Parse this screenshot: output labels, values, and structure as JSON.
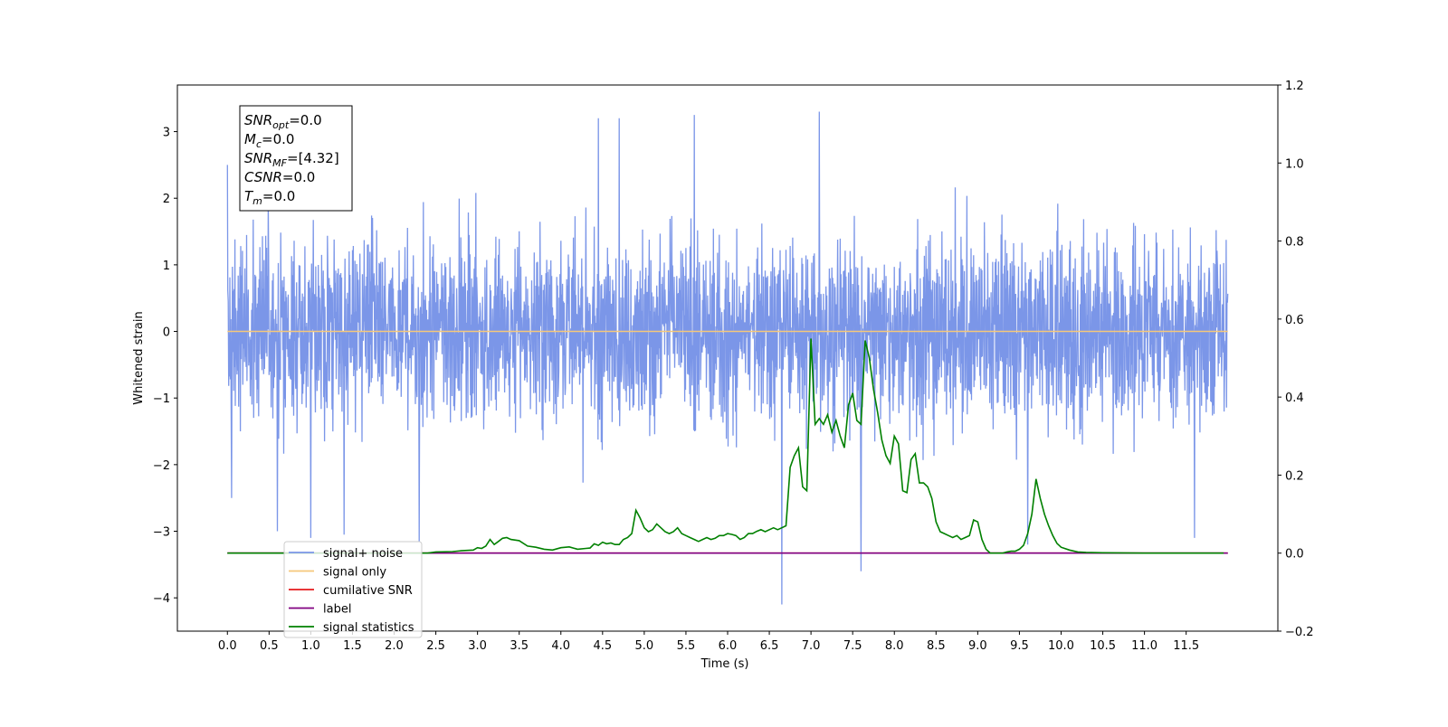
{
  "chart_data": {
    "type": "line",
    "xlabel": "Time (s)",
    "ylabel": "Whitened strain",
    "xlim": [
      -0.6,
      12.6
    ],
    "ylim": [
      -4.5,
      3.7
    ],
    "y2lim": [
      -0.2,
      1.2
    ],
    "grid": false,
    "legend_placement": "lower-left",
    "x_ticks": [
      0.0,
      0.5,
      1.0,
      1.5,
      2.0,
      2.5,
      3.0,
      3.5,
      4.0,
      4.5,
      5.0,
      5.5,
      6.0,
      6.5,
      7.0,
      7.5,
      8.0,
      8.5,
      9.0,
      9.5,
      10.0,
      10.5,
      11.0,
      11.5
    ],
    "x_tick_labels": [
      "0.0",
      "0.5",
      "1.0",
      "1.5",
      "2.0",
      "2.5",
      "3.0",
      "3.5",
      "4.0",
      "4.5",
      "5.0",
      "5.5",
      "6.0",
      "6.5",
      "7.0",
      "7.5",
      "8.0",
      "8.5",
      "9.0",
      "9.5",
      "10.0",
      "10.5",
      "11.0",
      "11.5"
    ],
    "y_ticks": [
      -4,
      -3,
      -2,
      -1,
      0,
      1,
      2,
      3
    ],
    "y_tick_labels": [
      "−4",
      "−3",
      "−2",
      "−1",
      "0",
      "1",
      "2",
      "3"
    ],
    "y2_ticks": [
      -0.2,
      0.0,
      0.2,
      0.4,
      0.6,
      0.8,
      1.0,
      1.2
    ],
    "y2_tick_labels": [
      "−0.2",
      "0.0",
      "0.2",
      "0.4",
      "0.6",
      "0.8",
      "1.0",
      "1.2"
    ],
    "annotation": [
      {
        "main": "SNR",
        "sub": "opt",
        "value": "=0.0"
      },
      {
        "main": "M",
        "sub": "c",
        "value": "=0.0"
      },
      {
        "main": "SNR",
        "sub": "MF",
        "value": "=[4.32]"
      },
      {
        "main": "CSNR",
        "sub": "",
        "value": "=0.0"
      },
      {
        "main": "T",
        "sub": "m",
        "value": "=0.0"
      }
    ],
    "series": [
      {
        "name": "signal+ noise",
        "color": "#7b96e8",
        "axis": "left",
        "kind": "noise",
        "x_range": [
          0.0,
          12.0
        ],
        "typical_range": [
          -1.6,
          1.6
        ],
        "peak_range": [
          -4.1,
          3.3
        ],
        "spikes": [
          [
            0.0,
            2.5
          ],
          [
            0.05,
            2.6
          ],
          [
            0.05,
            -2.5
          ],
          [
            0.6,
            -3.0
          ],
          [
            1.0,
            -3.1
          ],
          [
            1.4,
            -3.05
          ],
          [
            2.3,
            -3.15
          ],
          [
            4.45,
            3.2
          ],
          [
            4.7,
            3.2
          ],
          [
            5.6,
            3.25
          ],
          [
            6.65,
            -4.1
          ],
          [
            7.1,
            3.3
          ],
          [
            7.6,
            -3.6
          ],
          [
            9.6,
            -3.2
          ],
          [
            11.6,
            -3.1
          ]
        ]
      },
      {
        "name": "signal only",
        "color": "#f5c87a",
        "axis": "left",
        "kind": "line",
        "x": [
          0.0,
          12.0
        ],
        "y": [
          0.0,
          0.0
        ]
      },
      {
        "name": "cumilative SNR",
        "color": "#e41a1c",
        "axis": "right",
        "kind": "line",
        "x": [
          0.0,
          12.0
        ],
        "y": [
          0.0,
          0.0
        ]
      },
      {
        "name": "label",
        "color": "#800080",
        "axis": "right",
        "kind": "line",
        "x": [
          0.0,
          12.0
        ],
        "y": [
          0.0,
          0.0
        ]
      },
      {
        "name": "signal statistics",
        "color": "#008000",
        "axis": "right",
        "kind": "line",
        "x": [
          0.0,
          0.5,
          1.0,
          1.5,
          2.0,
          2.4,
          2.5,
          2.7,
          2.8,
          2.95,
          3.0,
          3.05,
          3.1,
          3.15,
          3.2,
          3.25,
          3.3,
          3.35,
          3.4,
          3.5,
          3.6,
          3.7,
          3.8,
          3.9,
          4.0,
          4.1,
          4.2,
          4.3,
          4.35,
          4.4,
          4.45,
          4.5,
          4.55,
          4.6,
          4.65,
          4.7,
          4.75,
          4.8,
          4.85,
          4.9,
          4.95,
          5.0,
          5.05,
          5.1,
          5.15,
          5.2,
          5.25,
          5.3,
          5.35,
          5.4,
          5.45,
          5.5,
          5.55,
          5.6,
          5.65,
          5.7,
          5.75,
          5.8,
          5.85,
          5.9,
          5.95,
          6.0,
          6.05,
          6.1,
          6.15,
          6.2,
          6.25,
          6.3,
          6.35,
          6.4,
          6.45,
          6.5,
          6.55,
          6.6,
          6.65,
          6.7,
          6.75,
          6.8,
          6.85,
          6.9,
          6.95,
          7.0,
          7.05,
          7.1,
          7.15,
          7.2,
          7.25,
          7.3,
          7.35,
          7.4,
          7.45,
          7.5,
          7.55,
          7.6,
          7.65,
          7.7,
          7.75,
          7.8,
          7.85,
          7.9,
          7.95,
          8.0,
          8.05,
          8.1,
          8.15,
          8.2,
          8.25,
          8.3,
          8.35,
          8.4,
          8.45,
          8.5,
          8.55,
          8.6,
          8.65,
          8.7,
          8.75,
          8.8,
          8.85,
          8.9,
          8.95,
          9.0,
          9.05,
          9.1,
          9.15,
          9.2,
          9.25,
          9.3,
          9.35,
          9.4,
          9.45,
          9.5,
          9.55,
          9.6,
          9.65,
          9.7,
          9.75,
          9.8,
          9.85,
          9.9,
          9.95,
          10.0,
          10.1,
          10.2,
          10.3,
          10.5,
          11.0,
          11.5,
          11.95
        ],
        "y": [
          0.0,
          0.0,
          0.0,
          0.0,
          0.0,
          0.0,
          0.003,
          0.004,
          0.006,
          0.008,
          0.014,
          0.012,
          0.018,
          0.035,
          0.022,
          0.03,
          0.038,
          0.04,
          0.035,
          0.032,
          0.018,
          0.015,
          0.01,
          0.008,
          0.014,
          0.016,
          0.01,
          0.012,
          0.013,
          0.024,
          0.02,
          0.028,
          0.024,
          0.026,
          0.022,
          0.022,
          0.035,
          0.04,
          0.05,
          0.11,
          0.09,
          0.065,
          0.055,
          0.06,
          0.075,
          0.065,
          0.055,
          0.05,
          0.055,
          0.065,
          0.05,
          0.045,
          0.04,
          0.035,
          0.03,
          0.035,
          0.04,
          0.035,
          0.038,
          0.045,
          0.045,
          0.05,
          0.048,
          0.045,
          0.035,
          0.04,
          0.05,
          0.05,
          0.056,
          0.06,
          0.055,
          0.06,
          0.065,
          0.06,
          0.065,
          0.07,
          0.22,
          0.25,
          0.27,
          0.17,
          0.16,
          0.55,
          0.33,
          0.345,
          0.33,
          0.355,
          0.31,
          0.34,
          0.3,
          0.27,
          0.38,
          0.41,
          0.34,
          0.33,
          0.545,
          0.5,
          0.42,
          0.36,
          0.29,
          0.25,
          0.23,
          0.3,
          0.28,
          0.16,
          0.155,
          0.24,
          0.255,
          0.18,
          0.18,
          0.17,
          0.14,
          0.08,
          0.055,
          0.05,
          0.045,
          0.04,
          0.045,
          0.035,
          0.04,
          0.045,
          0.085,
          0.08,
          0.035,
          0.01,
          0.0,
          0.0,
          0.0,
          0.0,
          0.003,
          0.005,
          0.005,
          0.01,
          0.02,
          0.05,
          0.1,
          0.19,
          0.14,
          0.1,
          0.07,
          0.045,
          0.025,
          0.015,
          0.008,
          0.003,
          0.002,
          0.001,
          0.0,
          0.0,
          0.0
        ]
      }
    ]
  }
}
